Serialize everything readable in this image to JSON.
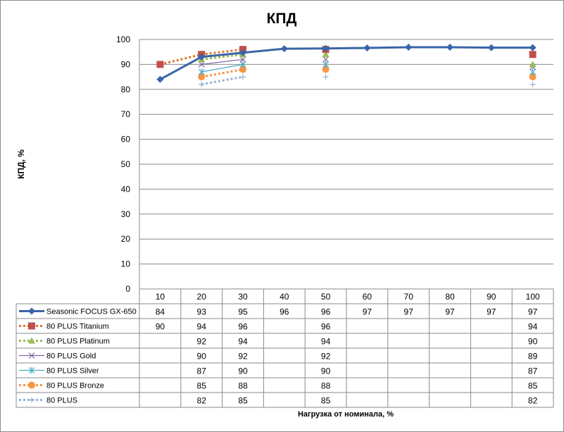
{
  "chart_data": {
    "type": "line",
    "title": "КПД",
    "ylabel": "КПД, %",
    "xlabel": "Нагрузка от номинала,  %",
    "categories": [
      "10",
      "20",
      "30",
      "40",
      "50",
      "60",
      "70",
      "80",
      "90",
      "100"
    ],
    "ylim": [
      0,
      100
    ],
    "yticks": [
      0,
      10,
      20,
      30,
      40,
      50,
      60,
      70,
      80,
      90,
      100
    ],
    "grid": true,
    "legend_placement": "data-table",
    "series": [
      {
        "name": "Seasonic FOCUS GX-650",
        "color": "#3a65a8",
        "marker": "diamond",
        "dash": "solid",
        "labels": [
          "84",
          "93",
          "95",
          "96",
          "96",
          "97",
          "97",
          "97",
          "97",
          "97"
        ],
        "values": [
          84,
          93,
          94.7,
          96.3,
          96.4,
          96.6,
          96.9,
          96.9,
          96.7,
          96.7
        ]
      },
      {
        "name": "80 PLUS Titanium",
        "color": "#e0752e",
        "marker": "square",
        "marker_color": "#c0504d",
        "dash": "dotted",
        "labels": [
          "90",
          "94",
          "96",
          "",
          "96",
          "",
          "",
          "",
          "",
          "94"
        ],
        "values": [
          90,
          94,
          96,
          null,
          96,
          null,
          null,
          null,
          null,
          94
        ]
      },
      {
        "name": "80 PLUS Platinum",
        "color": "#9bbb59",
        "marker": "triangle",
        "dash": "dotted",
        "labels": [
          "",
          "92",
          "94",
          "",
          "94",
          "",
          "",
          "",
          "",
          "90"
        ],
        "values": [
          null,
          92,
          94,
          null,
          94,
          null,
          null,
          null,
          null,
          90
        ]
      },
      {
        "name": "80 PLUS Gold",
        "color": "#8064a2",
        "marker": "x",
        "dash": "solid",
        "labels": [
          "",
          "90",
          "92",
          "",
          "92",
          "",
          "",
          "",
          "",
          "89"
        ],
        "values": [
          null,
          90,
          92,
          null,
          92,
          null,
          null,
          null,
          null,
          89
        ]
      },
      {
        "name": "80 PLUS Silver",
        "color": "#4bacc6",
        "marker": "star",
        "dash": "solid",
        "labels": [
          "",
          "87",
          "90",
          "",
          "90",
          "",
          "",
          "",
          "",
          "87"
        ],
        "values": [
          null,
          87,
          90,
          null,
          90,
          null,
          null,
          null,
          null,
          87
        ]
      },
      {
        "name": "80 PLUS Bronze",
        "color": "#f79646",
        "marker": "circle",
        "dash": "dotted",
        "labels": [
          "",
          "85",
          "88",
          "",
          "88",
          "",
          "",
          "",
          "",
          "85"
        ],
        "values": [
          null,
          85,
          88,
          null,
          88,
          null,
          null,
          null,
          null,
          85
        ]
      },
      {
        "name": "80 PLUS",
        "color": "#95b3d7",
        "marker": "plus",
        "dash": "dotted",
        "labels": [
          "",
          "82",
          "85",
          "",
          "85",
          "",
          "",
          "",
          "",
          "82"
        ],
        "values": [
          null,
          82,
          85,
          null,
          85,
          null,
          null,
          null,
          null,
          82
        ]
      }
    ]
  }
}
